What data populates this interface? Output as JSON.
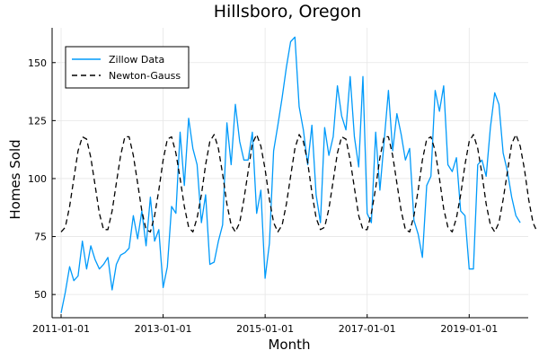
{
  "chart_data": {
    "type": "line",
    "title": "Hillsboro, Oregon",
    "xlabel": "Month",
    "ylabel": "Homes Sold",
    "x_ticks": [
      "2011-01-01",
      "2013-01-01",
      "2015-01-01",
      "2017-01-01",
      "2019-01-01"
    ],
    "y_ticks": [
      50,
      75,
      100,
      125,
      150
    ],
    "xlim": [
      "2011-01-01",
      "2020-05-01"
    ],
    "ylim": [
      40,
      165
    ],
    "grid": true,
    "legend_position": "top-left",
    "series": [
      {
        "name": "Zillow Data",
        "color": "#009AFA",
        "style": "solid",
        "x_start": "2011-01-01",
        "x_step": "1 month",
        "values": [
          42,
          51,
          62,
          56,
          58,
          73,
          61,
          71,
          65,
          61,
          63,
          66,
          52,
          63,
          67,
          68,
          70,
          84,
          74,
          86,
          71,
          92,
          73,
          78,
          53,
          62,
          88,
          85,
          120,
          97,
          126,
          113,
          106,
          81,
          93,
          63,
          64,
          73,
          80,
          124,
          106,
          132,
          116,
          108,
          108,
          120,
          85,
          95,
          57,
          72,
          112,
          123,
          135,
          148,
          159,
          161,
          131,
          121,
          106,
          123,
          93,
          81,
          122,
          110,
          118,
          140,
          127,
          121,
          144,
          118,
          105,
          144,
          85,
          81,
          120,
          95,
          116,
          138,
          112,
          128,
          119,
          108,
          113,
          82,
          76,
          66,
          97,
          101,
          138,
          129,
          140,
          106,
          103,
          109,
          86,
          84,
          61,
          61,
          106,
          108,
          101,
          122,
          137,
          132,
          111,
          103,
          92,
          84,
          81
        ]
      },
      {
        "name": "Newton-Gauss",
        "color": "#000000",
        "style": "dashed",
        "x_start": "2011-01-01",
        "x_step": "1 month",
        "values": [
          77,
          79,
          88,
          100,
          112,
          118,
          117,
          109,
          97,
          85,
          78,
          78,
          86,
          98,
          110,
          118,
          118,
          110,
          98,
          86,
          78,
          77,
          84,
          95,
          108,
          117,
          118,
          111,
          100,
          88,
          79,
          77,
          83,
          93,
          106,
          116,
          119,
          113,
          102,
          89,
          80,
          77,
          81,
          91,
          103,
          115,
          119,
          114,
          104,
          91,
          81,
          77,
          80,
          89,
          101,
          113,
          119,
          116,
          107,
          94,
          83,
          78,
          79,
          87,
          99,
          111,
          118,
          117,
          108,
          96,
          84,
          78,
          78,
          85,
          96,
          109,
          118,
          118,
          110,
          98,
          86,
          78,
          77,
          84,
          95,
          108,
          117,
          118,
          112,
          100,
          87,
          79,
          77,
          83,
          93,
          106,
          116,
          119,
          113,
          102,
          89,
          80,
          77,
          81,
          91,
          103,
          115,
          119,
          114,
          104,
          91,
          81,
          77
        ]
      }
    ]
  }
}
